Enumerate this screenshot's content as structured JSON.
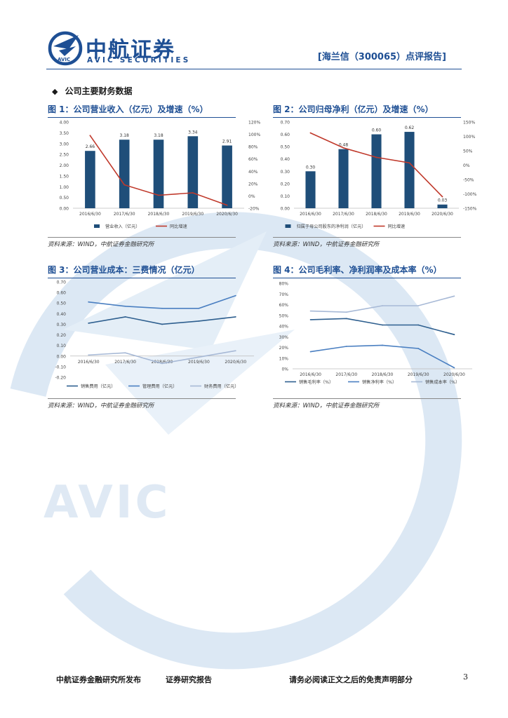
{
  "header": {
    "logo_cn": "中航证券",
    "logo_en": "AVIC SECURITIES",
    "logo_badge": "AVIC",
    "report_tag": "[海兰信（300065）点评报告]"
  },
  "watermark_text": "AVIC",
  "section": {
    "bullet": "◆",
    "title": "公司主要财务数据"
  },
  "source_note": "资料来源：WIND，中航证券金融研究所",
  "chart_data": [
    {
      "id": "fig1",
      "type": "bar",
      "title": "图 1：公司营业收入（亿元）及增速（%）",
      "categories": [
        "2016/6/30",
        "2017/6/30",
        "2018/6/30",
        "2019/6/30",
        "2020/6/30"
      ],
      "series": [
        {
          "name": "营业收入（亿元）",
          "type": "bar",
          "axis": "left",
          "values": [
            2.66,
            3.18,
            3.18,
            3.34,
            2.91
          ],
          "color": "#1f4e79",
          "labels": [
            "2.66",
            "3.18",
            "3.18",
            "3.34",
            "2.91"
          ]
        },
        {
          "name": "同比增速",
          "type": "line",
          "axis": "right",
          "values": [
            98,
            18,
            1,
            5,
            -15
          ],
          "color": "#c0392b"
        }
      ],
      "left_axis": {
        "min": 0,
        "max": 4,
        "ticks": [
          "0.00",
          "0.50",
          "1.00",
          "1.50",
          "2.00",
          "2.50",
          "3.00",
          "3.50",
          "4.00"
        ]
      },
      "right_axis": {
        "min": -20,
        "max": 120,
        "ticks": [
          "-20%",
          "0%",
          "20%",
          "40%",
          "60%",
          "80%",
          "100%",
          "120%"
        ]
      }
    },
    {
      "id": "fig2",
      "type": "bar",
      "title": "图 2：公司归母净利（亿元）及增速（%）",
      "categories": [
        "2016/6/30",
        "2017/6/30",
        "2018/6/30",
        "2019/6/30",
        "2020/6/30"
      ],
      "series": [
        {
          "name": "归属于母公司股东的净利润（亿元）",
          "type": "bar",
          "axis": "left",
          "values": [
            0.3,
            0.48,
            0.6,
            0.62,
            0.03
          ],
          "color": "#1f4e79",
          "labels": [
            "0.30",
            "0.48",
            "0.60",
            "0.62",
            "0.03"
          ]
        },
        {
          "name": "同比增速",
          "type": "line",
          "axis": "right",
          "values": [
            112,
            60,
            27,
            8,
            -110
          ],
          "color": "#c0392b"
        }
      ],
      "left_axis": {
        "min": 0,
        "max": 0.7,
        "ticks": [
          "0.00",
          "0.10",
          "0.20",
          "0.30",
          "0.40",
          "0.50",
          "0.60",
          "0.70"
        ]
      },
      "right_axis": {
        "min": -150,
        "max": 150,
        "ticks": [
          "-150%",
          "-100%",
          "-50%",
          "0%",
          "50%",
          "100%",
          "150%"
        ]
      }
    },
    {
      "id": "fig3",
      "type": "line",
      "title": "图 3：公司营业成本：三费情况（亿元）",
      "categories": [
        "2016/6/30",
        "2017/6/30",
        "2018/6/30",
        "2019/6/30",
        "2020/6/30"
      ],
      "series": [
        {
          "name": "销售费用（亿元）",
          "values": [
            0.31,
            0.37,
            0.3,
            0.33,
            0.37
          ],
          "color": "#2e5f8f"
        },
        {
          "name": "管理费用（亿元）",
          "values": [
            0.51,
            0.47,
            0.45,
            0.45,
            0.57
          ],
          "color": "#4a7fc1"
        },
        {
          "name": "财务费用（亿元）",
          "values": [
            0.01,
            0.03,
            -0.07,
            -0.01,
            0.05
          ],
          "color": "#a7b9d6"
        }
      ],
      "left_axis": {
        "min": -0.2,
        "max": 0.7,
        "ticks": [
          "-0.20",
          "-0.10",
          "0.00",
          "0.10",
          "0.20",
          "0.30",
          "0.40",
          "0.50",
          "0.60",
          "0.70"
        ]
      }
    },
    {
      "id": "fig4",
      "type": "line",
      "title": "图 4：公司毛利率、净利润率及成本率（%）",
      "categories": [
        "2016/6/30",
        "2017/6/30",
        "2018/6/30",
        "2019/6/30",
        "2020/6/30"
      ],
      "series": [
        {
          "name": "销售毛利率（%）",
          "values": [
            46,
            47,
            41,
            41,
            32
          ],
          "color": "#2e5f8f"
        },
        {
          "name": "销售净利率（%）",
          "values": [
            16,
            21,
            22,
            19,
            1
          ],
          "color": "#4a7fc1"
        },
        {
          "name": "销售成本率（%）",
          "values": [
            54,
            53,
            59,
            59,
            68
          ],
          "color": "#a7b9d6"
        }
      ],
      "left_axis": {
        "min": 0,
        "max": 80,
        "ticks": [
          "0%",
          "10%",
          "20%",
          "30%",
          "40%",
          "50%",
          "60%",
          "70%",
          "80%"
        ]
      }
    }
  ],
  "footer": {
    "publisher": "中航证券金融研究所发布",
    "doc_type": "证券研究报告",
    "disclaimer": "请务必阅读正文之后的免责声明部分",
    "page_number": "3"
  }
}
